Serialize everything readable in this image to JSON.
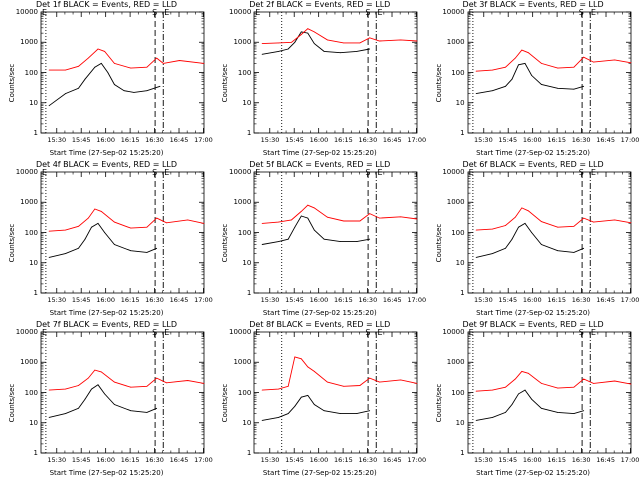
{
  "chart_data": [
    {
      "type": "line",
      "title": "Det 1f BLACK = Events, RED = LLD",
      "xlabel": "Start Time (27-Sep-02 15:25:20)",
      "ylabel": "Counts/sec",
      "yscale": "log",
      "ylim": [
        1,
        10000
      ],
      "ytick_labels": [
        "1",
        "10",
        "100",
        "1000",
        "10000"
      ],
      "xtick_labels": [
        "15:30",
        "15:45",
        "16:00",
        "16:15",
        "16:30",
        "16:45",
        "17:00"
      ],
      "x_range_minutes": [
        -5,
        95
      ],
      "markers": {
        "S_min": 65,
        "E_min": 70,
        "dotted_min": -2
      },
      "series": [
        {
          "name": "Events",
          "color": "#000000",
          "x": [
            0,
            10,
            18,
            22,
            28,
            32,
            36,
            40,
            46,
            52,
            60,
            68
          ],
          "y": [
            8,
            20,
            30,
            60,
            150,
            200,
            100,
            40,
            25,
            22,
            25,
            35
          ]
        },
        {
          "name": "LLD",
          "color": "#ff0000",
          "x": [
            0,
            10,
            18,
            24,
            30,
            34,
            40,
            50,
            60,
            66,
            70,
            80,
            95
          ],
          "y": [
            120,
            120,
            160,
            300,
            600,
            500,
            200,
            140,
            150,
            300,
            200,
            250,
            200
          ]
        }
      ]
    },
    {
      "type": "line",
      "title": "Det 2f BLACK = Events, RED = LLD",
      "xlabel": "Start Time (27-Sep-02 15:25:20)",
      "ylabel": "Counts/sec",
      "yscale": "log",
      "ylim": [
        1,
        10000
      ],
      "ytick_labels": [
        "1",
        "10",
        "100",
        "1000",
        "10000"
      ],
      "xtick_labels": [
        "15:30",
        "15:45",
        "16:00",
        "16:15",
        "16:30",
        "16:45",
        "17:00"
      ],
      "x_range_minutes": [
        -5,
        95
      ],
      "markers": {
        "S_min": 65,
        "E_min": 70,
        "dotted_min": 12
      },
      "series": [
        {
          "name": "Events",
          "color": "#000000",
          "x": [
            0,
            10,
            16,
            20,
            24,
            28,
            32,
            38,
            48,
            58,
            66
          ],
          "y": [
            400,
            500,
            600,
            1000,
            2200,
            2000,
            900,
            500,
            450,
            500,
            600
          ]
        },
        {
          "name": "LLD",
          "color": "#ff0000",
          "x": [
            0,
            10,
            18,
            24,
            28,
            32,
            40,
            50,
            60,
            66,
            72,
            85,
            95
          ],
          "y": [
            900,
            950,
            1000,
            1800,
            2800,
            2200,
            1200,
            950,
            950,
            1400,
            1100,
            1200,
            1100
          ]
        }
      ]
    },
    {
      "type": "line",
      "title": "Det 3f BLACK = Events, RED = LLD",
      "xlabel": "Start Time (27-Sep-02 15:25:20)",
      "ylabel": "Counts/sec",
      "yscale": "log",
      "ylim": [
        1,
        10000
      ],
      "ytick_labels": [
        "1",
        "10",
        "100",
        "1000",
        "10000"
      ],
      "xtick_labels": [
        "15:30",
        "15:45",
        "16:00",
        "16:15",
        "16:30",
        "16:45",
        "17:00"
      ],
      "x_range_minutes": [
        -5,
        95
      ],
      "markers": {
        "S_min": 65,
        "E_min": 70,
        "dotted_min": -2
      },
      "series": [
        {
          "name": "Events",
          "color": "#000000",
          "x": [
            0,
            10,
            18,
            22,
            26,
            30,
            34,
            40,
            50,
            60,
            66
          ],
          "y": [
            20,
            25,
            35,
            60,
            180,
            200,
            80,
            40,
            30,
            28,
            35
          ]
        },
        {
          "name": "LLD",
          "color": "#ff0000",
          "x": [
            0,
            10,
            18,
            24,
            28,
            32,
            40,
            50,
            60,
            66,
            72,
            85,
            95
          ],
          "y": [
            110,
            120,
            150,
            300,
            550,
            450,
            200,
            140,
            150,
            320,
            220,
            260,
            210
          ]
        }
      ]
    },
    {
      "type": "line",
      "title": "Det 4f BLACK = Events, RED = LLD",
      "xlabel": "Start Time (27-Sep-02 15:25:20)",
      "ylabel": "Counts/sec",
      "yscale": "log",
      "ylim": [
        1,
        10000
      ],
      "ytick_labels": [
        "1",
        "10",
        "100",
        "1000",
        "10000"
      ],
      "xtick_labels": [
        "15:30",
        "15:45",
        "16:00",
        "16:15",
        "16:30",
        "16:45",
        "17:00"
      ],
      "x_range_minutes": [
        -5,
        95
      ],
      "markers": {
        "S_min": 65,
        "E_min": 70,
        "dotted_min": -2
      },
      "series": [
        {
          "name": "Events",
          "color": "#000000",
          "x": [
            0,
            10,
            18,
            22,
            26,
            30,
            34,
            40,
            50,
            60,
            66
          ],
          "y": [
            15,
            20,
            30,
            60,
            150,
            200,
            100,
            40,
            25,
            22,
            30
          ]
        },
        {
          "name": "LLD",
          "color": "#ff0000",
          "x": [
            0,
            10,
            18,
            24,
            28,
            32,
            40,
            50,
            60,
            66,
            72,
            85,
            95
          ],
          "y": [
            110,
            120,
            160,
            300,
            600,
            500,
            220,
            140,
            150,
            300,
            210,
            260,
            200
          ]
        }
      ]
    },
    {
      "type": "line",
      "title": "Det 5f BLACK = Events, RED = LLD",
      "xlabel": "Start Time (27-Sep-02 15:25:20)",
      "ylabel": "Counts/sec",
      "yscale": "log",
      "ylim": [
        1,
        10000
      ],
      "ytick_labels": [
        "1",
        "10",
        "100",
        "1000",
        "10000"
      ],
      "xtick_labels": [
        "15:30",
        "15:45",
        "16:00",
        "16:15",
        "16:30",
        "16:45",
        "17:00"
      ],
      "x_range_minutes": [
        -5,
        95
      ],
      "markers": {
        "S_min": 65,
        "E_min": 70,
        "dotted_min": 12
      },
      "series": [
        {
          "name": "Events",
          "color": "#000000",
          "x": [
            0,
            10,
            16,
            20,
            24,
            28,
            32,
            38,
            48,
            58,
            66
          ],
          "y": [
            40,
            50,
            60,
            150,
            350,
            300,
            120,
            60,
            50,
            50,
            60
          ]
        },
        {
          "name": "LLD",
          "color": "#ff0000",
          "x": [
            0,
            10,
            18,
            24,
            28,
            32,
            40,
            50,
            60,
            66,
            72,
            85,
            95
          ],
          "y": [
            200,
            220,
            260,
            500,
            800,
            650,
            320,
            240,
            240,
            420,
            300,
            330,
            280
          ]
        }
      ]
    },
    {
      "type": "line",
      "title": "Det 6f BLACK = Events, RED = LLD",
      "xlabel": "Start Time (27-Sep-02 15:25:20)",
      "ylabel": "Counts/sec",
      "yscale": "log",
      "ylim": [
        1,
        10000
      ],
      "ytick_labels": [
        "1",
        "10",
        "100",
        "1000",
        "10000"
      ],
      "xtick_labels": [
        "15:30",
        "15:45",
        "16:00",
        "16:15",
        "16:30",
        "16:45",
        "17:00"
      ],
      "x_range_minutes": [
        -5,
        95
      ],
      "markers": {
        "S_min": 65,
        "E_min": 70,
        "dotted_min": -2
      },
      "series": [
        {
          "name": "Events",
          "color": "#000000",
          "x": [
            0,
            10,
            18,
            22,
            26,
            30,
            34,
            40,
            50,
            60,
            66
          ],
          "y": [
            15,
            20,
            30,
            60,
            150,
            200,
            100,
            40,
            25,
            22,
            30
          ]
        },
        {
          "name": "LLD",
          "color": "#ff0000",
          "x": [
            0,
            10,
            18,
            24,
            28,
            32,
            40,
            50,
            60,
            66,
            72,
            85,
            95
          ],
          "y": [
            120,
            130,
            170,
            320,
            650,
            520,
            230,
            150,
            160,
            300,
            220,
            260,
            210
          ]
        }
      ]
    },
    {
      "type": "line",
      "title": "Det 7f BLACK = Events, RED = LLD",
      "xlabel": "Start Time (27-Sep-02 15:25:20)",
      "ylabel": "Counts/sec",
      "yscale": "log",
      "ylim": [
        1,
        10000
      ],
      "ytick_labels": [
        "1",
        "10",
        "100",
        "1000",
        "10000"
      ],
      "xtick_labels": [
        "15:30",
        "15:45",
        "16:00",
        "16:15",
        "16:30",
        "16:45",
        "17:00"
      ],
      "x_range_minutes": [
        -5,
        95
      ],
      "markers": {
        "S_min": 65,
        "E_min": 70,
        "dotted_min": -2
      },
      "series": [
        {
          "name": "Events",
          "color": "#000000",
          "x": [
            0,
            10,
            18,
            22,
            26,
            30,
            34,
            40,
            50,
            60,
            66
          ],
          "y": [
            15,
            20,
            30,
            60,
            130,
            180,
            90,
            40,
            25,
            22,
            30
          ]
        },
        {
          "name": "LLD",
          "color": "#ff0000",
          "x": [
            0,
            10,
            18,
            24,
            28,
            32,
            40,
            50,
            60,
            66,
            72,
            85,
            95
          ],
          "y": [
            120,
            130,
            170,
            300,
            550,
            480,
            220,
            150,
            160,
            300,
            210,
            250,
            200
          ]
        }
      ]
    },
    {
      "type": "line",
      "title": "Det 8f BLACK = Events, RED = LLD",
      "xlabel": "Start Time (27-Sep-02 15:25:20)",
      "ylabel": "Counts/sec",
      "yscale": "log",
      "ylim": [
        1,
        10000
      ],
      "ytick_labels": [
        "1",
        "10",
        "100",
        "1000",
        "10000"
      ],
      "xtick_labels": [
        "15:30",
        "15:45",
        "16:00",
        "16:15",
        "16:30",
        "16:45",
        "17:00"
      ],
      "x_range_minutes": [
        -5,
        95
      ],
      "markers": {
        "S_min": 65,
        "E_min": 70,
        "dotted_min": 12
      },
      "series": [
        {
          "name": "Events",
          "color": "#000000",
          "x": [
            0,
            10,
            16,
            20,
            24,
            28,
            32,
            38,
            48,
            58,
            66
          ],
          "y": [
            12,
            15,
            20,
            35,
            70,
            80,
            40,
            25,
            20,
            20,
            25
          ]
        },
        {
          "name": "LLD",
          "color": "#ff0000",
          "x": [
            0,
            10,
            16,
            20,
            24,
            28,
            32,
            40,
            50,
            60,
            66,
            72,
            85,
            95
          ],
          "y": [
            120,
            130,
            160,
            1500,
            1300,
            700,
            500,
            220,
            160,
            170,
            300,
            220,
            260,
            200
          ]
        }
      ]
    },
    {
      "type": "line",
      "title": "Det 9f BLACK = Events, RED = LLD",
      "xlabel": "Start Time (27-Sep-02 15:25:20)",
      "ylabel": "Counts/sec",
      "yscale": "log",
      "ylim": [
        1,
        10000
      ],
      "ytick_labels": [
        "1",
        "10",
        "100",
        "1000",
        "10000"
      ],
      "xtick_labels": [
        "15:30",
        "15:45",
        "16:00",
        "16:15",
        "16:30",
        "16:45",
        "17:00"
      ],
      "x_range_minutes": [
        -5,
        95
      ],
      "markers": {
        "S_min": 65,
        "E_min": 70,
        "dotted_min": -2
      },
      "series": [
        {
          "name": "Events",
          "color": "#000000",
          "x": [
            0,
            10,
            18,
            22,
            26,
            30,
            34,
            40,
            50,
            60,
            66
          ],
          "y": [
            12,
            15,
            22,
            40,
            90,
            120,
            60,
            30,
            22,
            20,
            25
          ]
        },
        {
          "name": "LLD",
          "color": "#ff0000",
          "x": [
            0,
            10,
            18,
            24,
            28,
            32,
            40,
            50,
            60,
            66,
            72,
            85,
            95
          ],
          "y": [
            110,
            120,
            150,
            280,
            500,
            430,
            200,
            140,
            150,
            280,
            200,
            240,
            190
          ]
        }
      ]
    }
  ],
  "marker_labels": {
    "start": "S",
    "end": "E"
  }
}
